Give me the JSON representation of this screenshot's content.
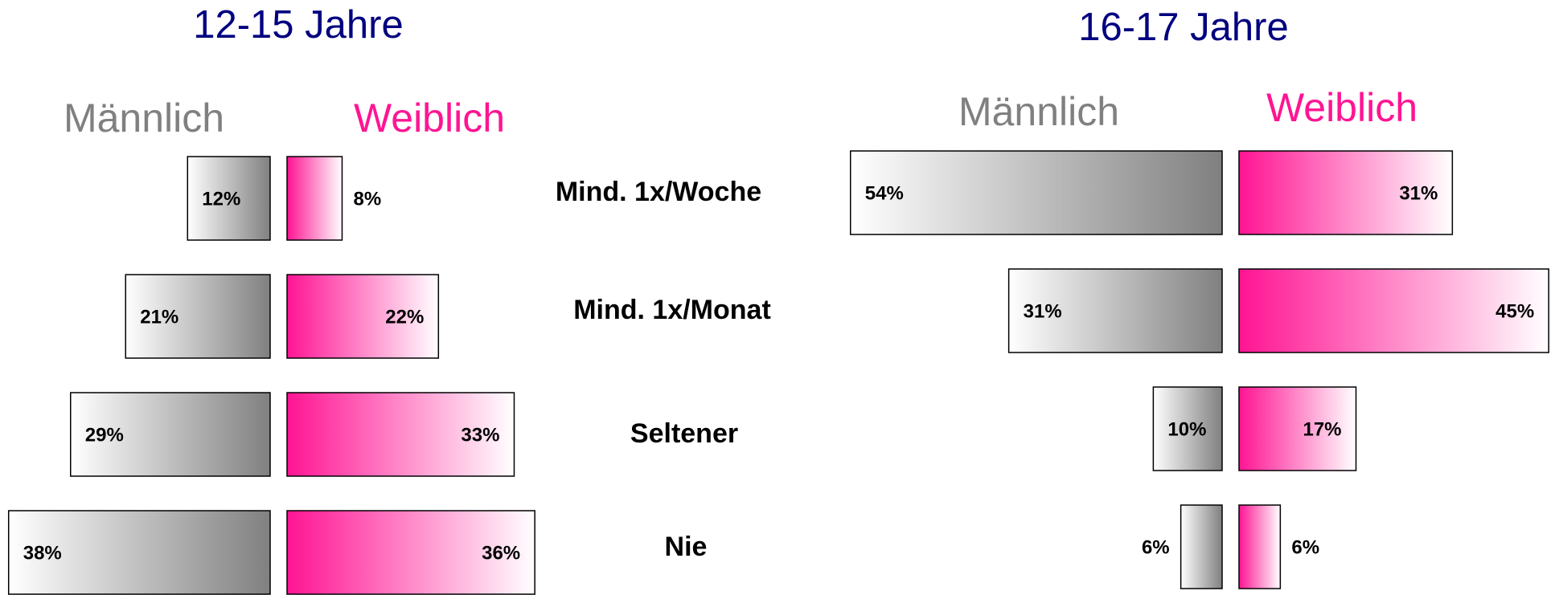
{
  "chart_data": [
    {
      "type": "butterfly",
      "title": "12-15 Jahre",
      "categories": [
        "Mind. 1x/Woche",
        "Mind. 1x/Monat",
        "Seltener",
        "Nie"
      ],
      "series": [
        {
          "name": "Männlich",
          "color": "#808080",
          "values": [
            12,
            21,
            29,
            38
          ],
          "value_labels": [
            "12%",
            "21%",
            "29%",
            "38%"
          ]
        },
        {
          "name": "Weiblich",
          "color": "#ff1493",
          "values": [
            8,
            22,
            33,
            36
          ],
          "value_labels": [
            "8%",
            "22%",
            "33%",
            "36%"
          ]
        }
      ]
    },
    {
      "type": "butterfly",
      "title": "16-17 Jahre",
      "series": [
        {
          "name": "Männlich",
          "color": "#808080",
          "values": [
            54,
            31,
            10,
            6
          ],
          "value_labels": [
            "54%",
            "31%",
            "10%",
            "6%"
          ]
        },
        {
          "name": "Weiblich",
          "color": "#ff1493",
          "values": [
            31,
            45,
            17,
            6
          ],
          "value_labels": [
            "31%",
            "45%",
            "17%",
            "6%"
          ]
        }
      ]
    }
  ]
}
